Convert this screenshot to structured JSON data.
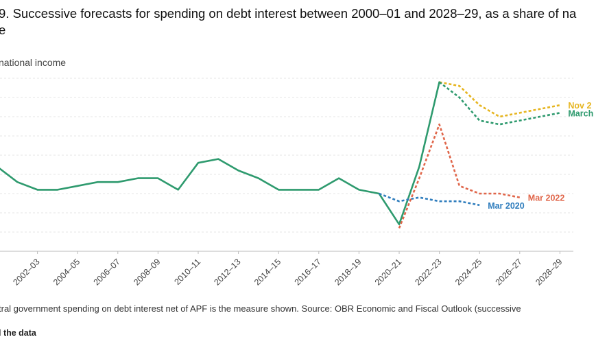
{
  "title_line1": "9. Successive forecasts for spending on debt interest between 2000–01 and 2028–29, as a share of na",
  "title_line2": "e",
  "ylabel": "national income",
  "note": "tral government spending on debt interest net of APF is the measure shown. Source: OBR Economic and Fiscal Outlook (successive",
  "get_data": "l the data",
  "chart_data": {
    "type": "line",
    "title": "9. Successive forecasts for spending on debt interest between 2000–01 and 2028–29, as a share of na e",
    "ylabel": "national income",
    "xlabel": "",
    "x": [
      "2000–01",
      "2001–02",
      "2002–03",
      "2003–04",
      "2004–05",
      "2005–06",
      "2006–07",
      "2007–08",
      "2008–09",
      "2009–10",
      "2010–11",
      "2011–12",
      "2012–13",
      "2013–14",
      "2014–15",
      "2015–16",
      "2016–17",
      "2017–18",
      "2018–19",
      "2019–20",
      "2020–21",
      "2021–22",
      "2022–23",
      "2023–24",
      "2024–25",
      "2025–26",
      "2026–27",
      "2027–28",
      "2028–29"
    ],
    "x_tick_labels": [
      "2002–03",
      "2004–05",
      "2006–07",
      "2008–09",
      "2010–11",
      "2012–13",
      "2014–15",
      "2016–17",
      "2018–19",
      "2020–21",
      "2022–23",
      "2024–25",
      "2026–27",
      "2028–29"
    ],
    "ylim": [
      0,
      4.5
    ],
    "grid": true,
    "series": [
      {
        "name": "",
        "color": "#2e9a6e",
        "style": "solid",
        "x": [
          "2000–01",
          "2001–02",
          "2002–03",
          "2003–04",
          "2004–05",
          "2005–06",
          "2006–07",
          "2007–08",
          "2008–09",
          "2009–10",
          "2010–11",
          "2011–12",
          "2012–13",
          "2013–14",
          "2014–15",
          "2015–16",
          "2016–17",
          "2017–18",
          "2018–19",
          "2019–20",
          "2020–21",
          "2021–22",
          "2022–23"
        ],
        "values": [
          2.2,
          1.8,
          1.6,
          1.6,
          1.7,
          1.8,
          1.8,
          1.9,
          1.9,
          1.6,
          2.3,
          2.4,
          2.1,
          1.9,
          1.6,
          1.6,
          1.6,
          1.9,
          1.6,
          1.5,
          0.7,
          2.2,
          4.4
        ]
      },
      {
        "name": "Mar 2020",
        "color": "#2f7dbd",
        "style": "dashed",
        "x": [
          "2019–20",
          "2020–21",
          "2021–22",
          "2022–23",
          "2023–24",
          "2024–25"
        ],
        "values": [
          1.5,
          1.3,
          1.4,
          1.3,
          1.3,
          1.2
        ]
      },
      {
        "name": "Mar 2022",
        "color": "#e0664a",
        "style": "dashed",
        "x": [
          "2020–21",
          "2021–22",
          "2022–23",
          "2023–24",
          "2024–25",
          "2025–26",
          "2026–27"
        ],
        "values": [
          0.6,
          1.9,
          3.3,
          1.7,
          1.5,
          1.5,
          1.4
        ]
      },
      {
        "name": "Nov 2",
        "color": "#e6b520",
        "style": "dashed",
        "x": [
          "2022–23",
          "2023–24",
          "2024–25",
          "2025–26",
          "2026–27",
          "2027–28",
          "2028–29"
        ],
        "values": [
          4.4,
          4.3,
          3.8,
          3.5,
          3.6,
          3.7,
          3.8
        ]
      },
      {
        "name": "March",
        "color": "#2e9a6e",
        "style": "dashed",
        "x": [
          "2022–23",
          "2023–24",
          "2024–25",
          "2025–26",
          "2026–27",
          "2027–28",
          "2028–29"
        ],
        "values": [
          4.4,
          4.0,
          3.4,
          3.3,
          3.4,
          3.5,
          3.6
        ]
      }
    ]
  }
}
